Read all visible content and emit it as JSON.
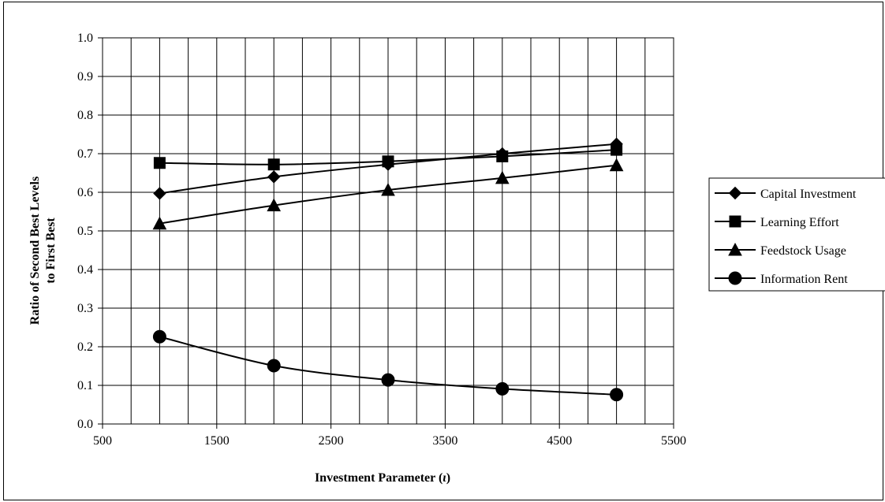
{
  "chart_data": {
    "type": "line",
    "title": "",
    "xlabel_main": "Investment Parameter (",
    "xlabel_symbol": "ι",
    "xlabel_end": ")",
    "ylabel_line1": "Ratio of Second Best Levels",
    "ylabel_line2": "to First Best",
    "xlim": [
      500,
      5500
    ],
    "ylim": [
      0.0,
      1.0
    ],
    "x_ticks": [
      "500",
      "1500",
      "2500",
      "3500",
      "4500",
      "5500"
    ],
    "y_ticks": [
      "0.0",
      "0.1",
      "0.2",
      "0.3",
      "0.4",
      "0.5",
      "0.6",
      "0.7",
      "0.8",
      "0.9",
      "1.0"
    ],
    "grid": true,
    "legend_position": "right",
    "x": [
      1000,
      2000,
      3000,
      4000,
      5000
    ],
    "series": [
      {
        "name": "Capital Investment",
        "marker": "diamond",
        "values": [
          0.597,
          0.64,
          0.672,
          0.7,
          0.725
        ]
      },
      {
        "name": "Learning Effort",
        "marker": "square",
        "values": [
          0.676,
          0.672,
          0.68,
          0.693,
          0.71
        ]
      },
      {
        "name": "Feedstock Usage",
        "marker": "triangle",
        "values": [
          0.519,
          0.566,
          0.606,
          0.637,
          0.67
        ]
      },
      {
        "name": "Information Rent",
        "marker": "circle",
        "values": [
          0.226,
          0.151,
          0.114,
          0.091,
          0.076
        ]
      }
    ]
  }
}
